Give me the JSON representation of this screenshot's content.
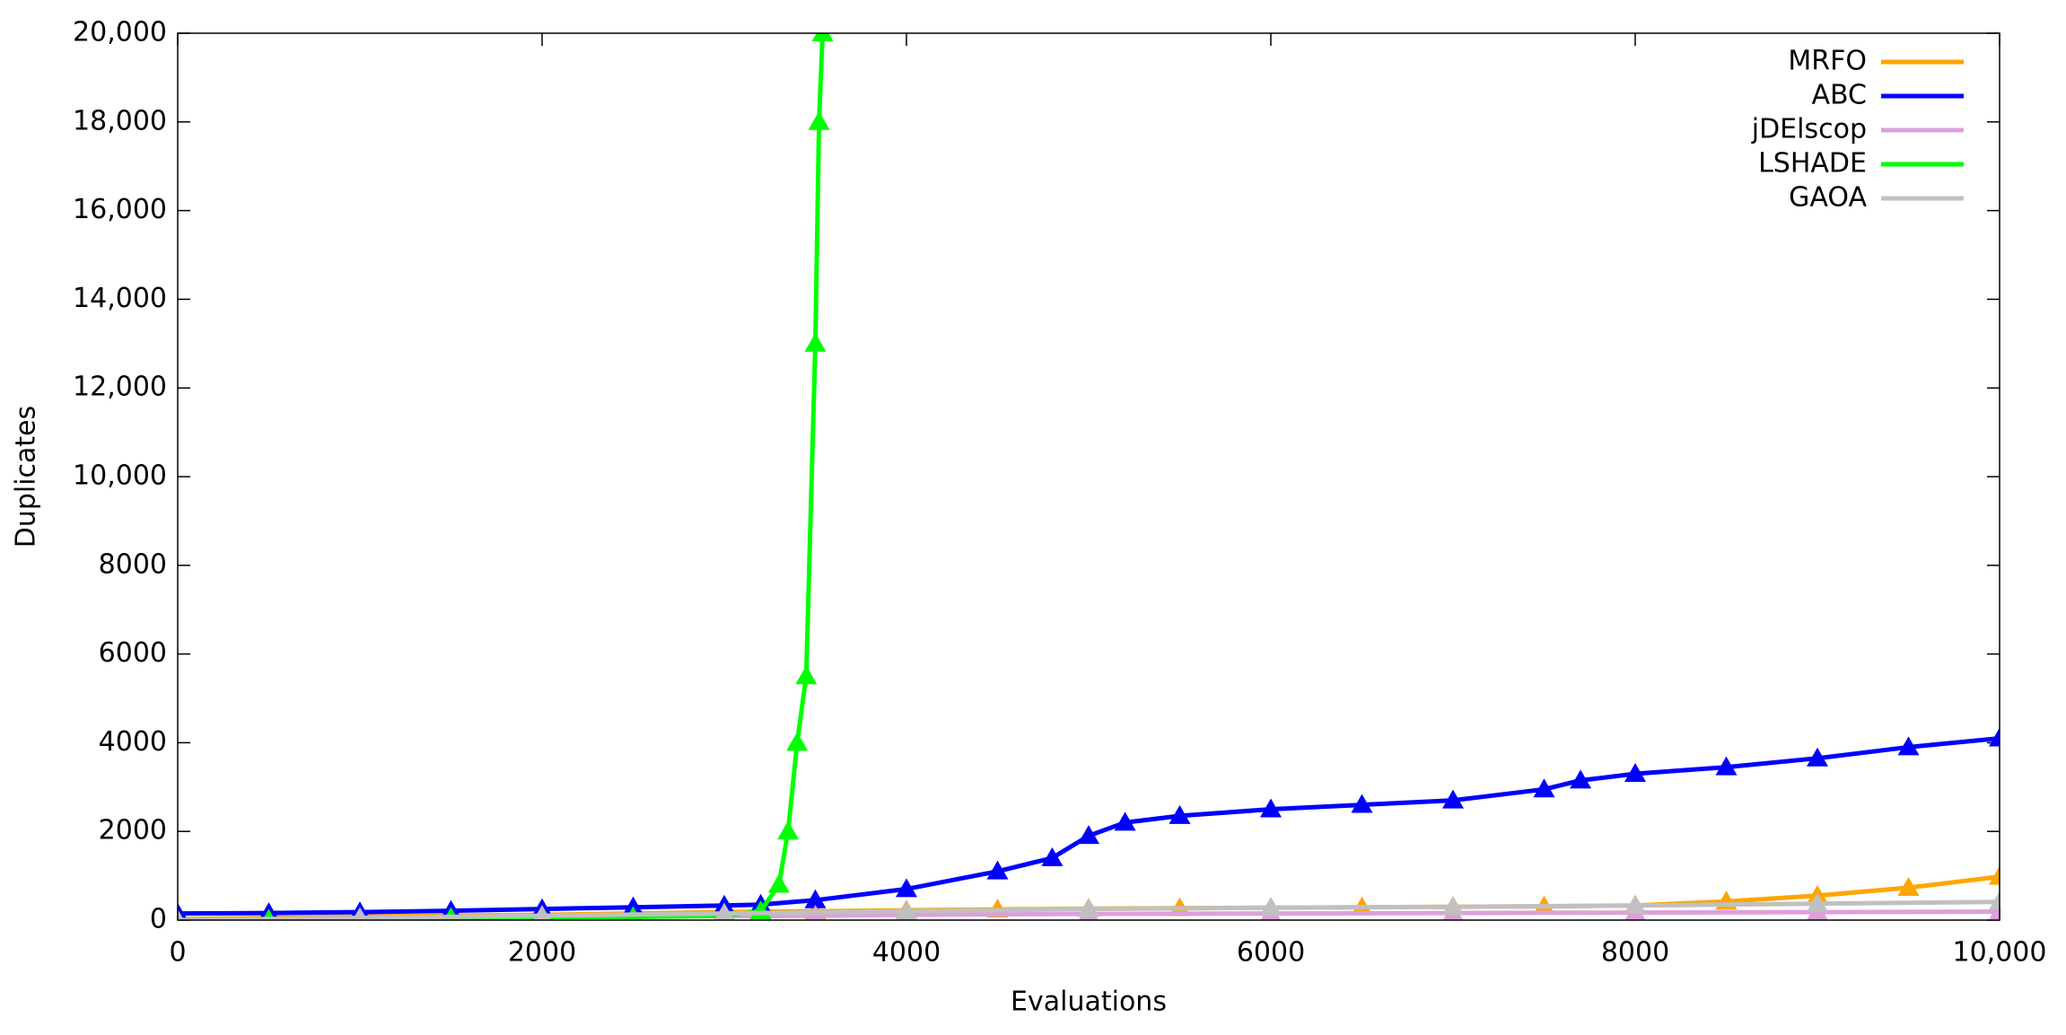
{
  "chart_data": {
    "type": "line",
    "x_label": "Evaluations",
    "y_label": "Duplicates",
    "xlim": [
      0,
      10000
    ],
    "ylim": [
      0,
      20000
    ],
    "xticks": [
      0,
      2000,
      4000,
      6000,
      8000,
      {
        "value": 10000,
        "label": "10,000"
      }
    ],
    "yticks": [
      0,
      2000,
      4000,
      6000,
      8000,
      {
        "value": 10000,
        "label": "10,000"
      },
      {
        "value": 12000,
        "label": "12,000"
      },
      {
        "value": 14000,
        "label": "14,000"
      },
      {
        "value": 16000,
        "label": "16,000"
      },
      {
        "value": 18000,
        "label": "18,000"
      },
      {
        "value": 20000,
        "label": "20,000"
      }
    ],
    "legend": "top-right",
    "series": [
      {
        "name": "MRFO",
        "color": "#ffa500",
        "x": [
          0,
          500,
          1000,
          1500,
          2000,
          2500,
          3000,
          3500,
          4000,
          4500,
          5000,
          5500,
          6000,
          6500,
          7000,
          7500,
          8000,
          8500,
          9000,
          9500,
          10000
        ],
        "values": [
          20,
          50,
          80,
          100,
          120,
          150,
          180,
          200,
          220,
          240,
          260,
          270,
          280,
          290,
          300,
          310,
          330,
          420,
          550,
          730,
          980
        ]
      },
      {
        "name": "ABC",
        "color": "#0000ff",
        "x": [
          0,
          500,
          1000,
          1500,
          2000,
          2500,
          3000,
          3200,
          3500,
          4000,
          4500,
          4800,
          5000,
          5200,
          5500,
          6000,
          6500,
          7000,
          7500,
          7700,
          8000,
          8500,
          9000,
          9500,
          10000
        ],
        "values": [
          150,
          160,
          180,
          210,
          250,
          290,
          330,
          350,
          450,
          700,
          1100,
          1400,
          1900,
          2200,
          2350,
          2500,
          2600,
          2700,
          2950,
          3150,
          3300,
          3450,
          3650,
          3900,
          4100
        ]
      },
      {
        "name": "jDElscop",
        "color": "#dda0dd",
        "x": [
          0,
          1000,
          2000,
          3000,
          3500,
          4000,
          5000,
          6000,
          7000,
          8000,
          9000,
          10000
        ],
        "values": [
          0,
          40,
          70,
          90,
          100,
          120,
          140,
          150,
          160,
          170,
          180,
          190
        ]
      },
      {
        "name": "LSHADE",
        "color": "#00ff00",
        "x": [
          0,
          500,
          1000,
          1500,
          2000,
          2500,
          3000,
          3200,
          3300,
          3350,
          3400,
          3450,
          3500,
          3520,
          3540
        ],
        "values": [
          0,
          10,
          30,
          50,
          60,
          70,
          100,
          200,
          800,
          2000,
          4000,
          5500,
          13000,
          18000,
          20000
        ]
      },
      {
        "name": "GAOA",
        "color": "#c0c0c0",
        "x": [
          0,
          1000,
          2000,
          3000,
          4000,
          5000,
          6000,
          7000,
          8000,
          9000,
          10000
        ],
        "values": [
          0,
          50,
          100,
          150,
          200,
          250,
          280,
          300,
          330,
          370,
          410
        ]
      }
    ]
  }
}
